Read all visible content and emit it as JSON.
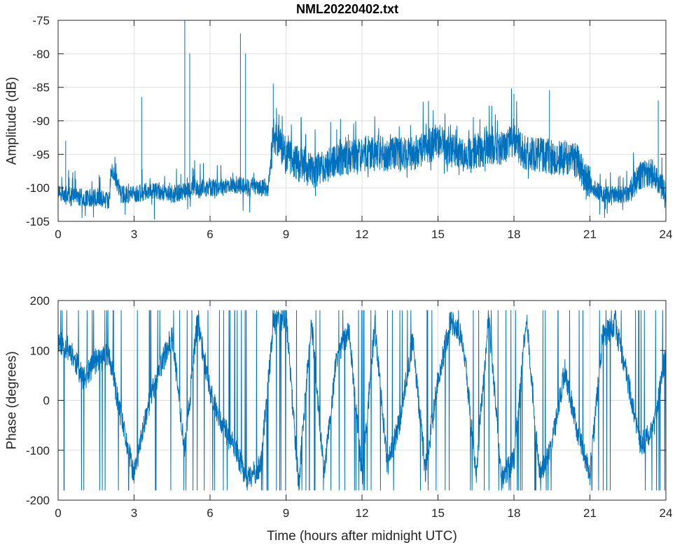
{
  "figure": {
    "title": "NML20220402.txt"
  },
  "chart_data": [
    {
      "type": "line",
      "title": "NML20220402.txt",
      "xlabel": "",
      "ylabel": "Amplitude (dB)",
      "xlim": [
        0,
        24
      ],
      "ylim": [
        -105,
        -75
      ],
      "xticks": [
        0,
        3,
        6,
        9,
        12,
        15,
        18,
        21,
        24
      ],
      "xtick_labels": [
        "0",
        "3",
        "6",
        "9",
        "12",
        "15",
        "18",
        "21",
        "24"
      ],
      "yticks": [
        -105,
        -100,
        -95,
        -90,
        -85,
        -80,
        -75
      ],
      "ytick_labels": [
        "-105",
        "-100",
        "-95",
        "-90",
        "-85",
        "-80",
        "-75"
      ],
      "grid": true,
      "color": "#0072bd",
      "series": [
        {
          "x": [
            0,
            0.5,
            1,
            1.5,
            2,
            2.1,
            2.5,
            3,
            3.5,
            4,
            4.5,
            5,
            5.5,
            6,
            6.5,
            7,
            7.5,
            8,
            8.3,
            8.5,
            9,
            9.5,
            10,
            10.5,
            11,
            11.5,
            12,
            12.5,
            13,
            13.5,
            14,
            14.5,
            15,
            15.5,
            16,
            16.5,
            17,
            17.5,
            18,
            18.5,
            19,
            19.5,
            20,
            20.5,
            21,
            21.5,
            22,
            22.5,
            23,
            23.5,
            24
          ],
          "values": [
            -101,
            -101,
            -101.5,
            -101.5,
            -101.8,
            -97,
            -101,
            -101,
            -100.5,
            -100.5,
            -101,
            -100.5,
            -100,
            -100,
            -100,
            -99.5,
            -100,
            -100,
            -100,
            -92,
            -95,
            -96.5,
            -97.5,
            -97,
            -96,
            -95.5,
            -95,
            -94.5,
            -95,
            -95,
            -95,
            -94,
            -93,
            -94.5,
            -95,
            -94.5,
            -94,
            -94,
            -93,
            -95,
            -95,
            -95.5,
            -95.5,
            -96,
            -99.5,
            -101,
            -101,
            -101,
            -98,
            -98,
            -101
          ]
        }
      ],
      "peaks": [
        {
          "x": 0.3,
          "y": -93
        },
        {
          "x": 3.3,
          "y": -86.5
        },
        {
          "x": 5.0,
          "y": -75
        },
        {
          "x": 5.2,
          "y": -80
        },
        {
          "x": 7.2,
          "y": -77
        },
        {
          "x": 7.4,
          "y": -80
        },
        {
          "x": 8.5,
          "y": -84.5
        },
        {
          "x": 18.0,
          "y": -86
        },
        {
          "x": 19.4,
          "y": -85.5
        },
        {
          "x": 23.7,
          "y": -87
        }
      ]
    },
    {
      "type": "line",
      "title": "",
      "xlabel": "Time (hours after midnight UTC)",
      "ylabel": "Phase (degrees)",
      "xlim": [
        0,
        24
      ],
      "ylim": [
        -200,
        200
      ],
      "xticks": [
        0,
        3,
        6,
        9,
        12,
        15,
        18,
        21,
        24
      ],
      "xtick_labels": [
        "0",
        "3",
        "6",
        "9",
        "12",
        "15",
        "18",
        "21",
        "24"
      ],
      "yticks": [
        -200,
        -100,
        0,
        100,
        200
      ],
      "ytick_labels": [
        "-200",
        "-100",
        "0",
        "100",
        "200"
      ],
      "grid": true,
      "color": "#0072bd",
      "series": [
        {
          "x": [
            0,
            0.5,
            1,
            1.5,
            2,
            2.5,
            3,
            3.5,
            4,
            4.5,
            5,
            5.5,
            6,
            6.5,
            7,
            7.5,
            8,
            8.5,
            9,
            9.5,
            10,
            10.5,
            11,
            11.5,
            12,
            12.5,
            13,
            13.5,
            14,
            14.5,
            15,
            15.5,
            16,
            16.5,
            17,
            17.5,
            18,
            18.5,
            19,
            19.5,
            20,
            20.5,
            21,
            21.5,
            22,
            22.5,
            23,
            23.5,
            24
          ],
          "values": [
            120,
            100,
            40,
            80,
            90,
            -40,
            -150,
            -20,
            60,
            130,
            -100,
            160,
            20,
            -50,
            -100,
            -160,
            -130,
            150,
            170,
            -170,
            160,
            -150,
            90,
            140,
            -160,
            150,
            -130,
            -40,
            120,
            -140,
            40,
            160,
            120,
            -150,
            170,
            -160,
            -120,
            170,
            -150,
            -90,
            60,
            -60,
            -150,
            130,
            150,
            40,
            -90,
            -60,
            100
          ]
        }
      ]
    }
  ]
}
